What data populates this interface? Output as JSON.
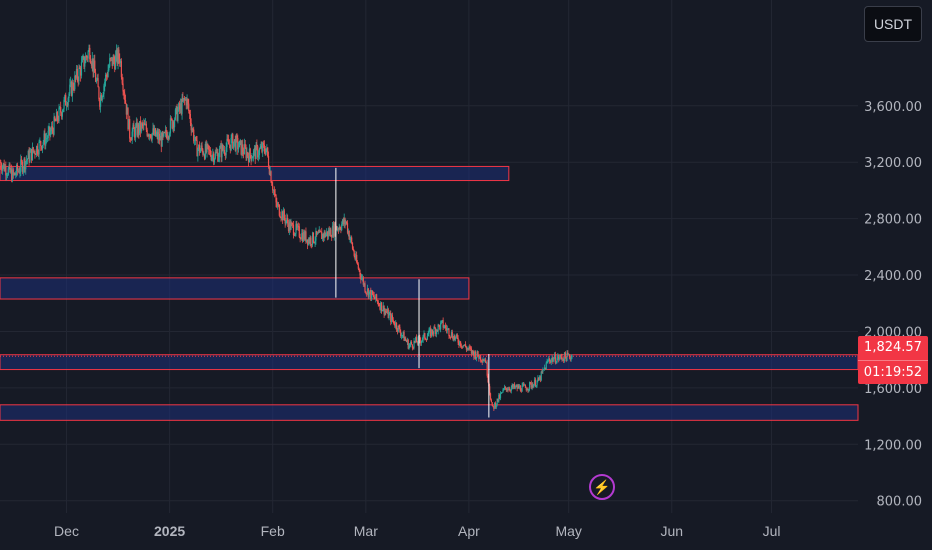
{
  "toolbar": {
    "currency_label": "USDT"
  },
  "last_price": {
    "value": "1,824.57",
    "countdown": "01:19:52"
  },
  "icons": {
    "alert": "lightning-icon"
  },
  "colors": {
    "background": "#161a25",
    "grid": "#232733",
    "up_candle": "#26a69a",
    "down_candle": "#ef5350",
    "zone_fill": "#1e2f78",
    "zone_border": "#f23645",
    "price_tag": "#f23645",
    "axis_text": "#b2b5be"
  },
  "chart_data": {
    "type": "candlestick",
    "symbol_quote": "USDT",
    "x_tick_labels": [
      "Dec",
      "2025",
      "Feb",
      "Mar",
      "Apr",
      "May",
      "Jun",
      "Jul"
    ],
    "y_tick_labels": [
      "3,600.00",
      "3,200.00",
      "2,800.00",
      "2,400.00",
      "2,000.00",
      "1,600.00",
      "1,200.00",
      "800.00"
    ],
    "y_ticks": [
      3600,
      3200,
      2800,
      2400,
      2000,
      1600,
      1200,
      800
    ],
    "ylim": [
      713,
      4350
    ],
    "xlim": [
      "2024-11-11",
      "2025-07-27"
    ],
    "grid": true,
    "last_price": 1824.57,
    "price_path": [
      [
        "2024-11-11",
        3200
      ],
      [
        "2024-11-15",
        3100
      ],
      [
        "2024-11-20",
        3250
      ],
      [
        "2024-11-26",
        3400
      ],
      [
        "2024-12-01",
        3650
      ],
      [
        "2024-12-05",
        3850
      ],
      [
        "2024-12-08",
        4000
      ],
      [
        "2024-12-11",
        3650
      ],
      [
        "2024-12-14",
        3900
      ],
      [
        "2024-12-17",
        3950
      ],
      [
        "2024-12-20",
        3400
      ],
      [
        "2024-12-24",
        3450
      ],
      [
        "2024-12-30",
        3350
      ],
      [
        "2025-01-02",
        3500
      ],
      [
        "2025-01-06",
        3650
      ],
      [
        "2025-01-09",
        3300
      ],
      [
        "2025-01-15",
        3250
      ],
      [
        "2025-01-20",
        3350
      ],
      [
        "2025-01-25",
        3250
      ],
      [
        "2025-01-30",
        3300
      ],
      [
        "2025-02-02",
        2900
      ],
      [
        "2025-02-06",
        2750
      ],
      [
        "2025-02-12",
        2650
      ],
      [
        "2025-02-18",
        2700
      ],
      [
        "2025-02-23",
        2780
      ],
      [
        "2025-02-26",
        2500
      ],
      [
        "2025-03-01",
        2300
      ],
      [
        "2025-03-05",
        2200
      ],
      [
        "2025-03-10",
        2050
      ],
      [
        "2025-03-14",
        1900
      ],
      [
        "2025-03-18",
        1950
      ],
      [
        "2025-03-24",
        2050
      ],
      [
        "2025-03-28",
        1950
      ],
      [
        "2025-04-02",
        1850
      ],
      [
        "2025-04-06",
        1800
      ],
      [
        "2025-04-08",
        1450
      ],
      [
        "2025-04-12",
        1600
      ],
      [
        "2025-04-18",
        1600
      ],
      [
        "2025-04-22",
        1650
      ],
      [
        "2025-04-25",
        1800
      ],
      [
        "2025-04-30",
        1820
      ],
      [
        "2025-05-02",
        1824.57
      ]
    ],
    "zones": [
      {
        "low": 3070,
        "high": 3170,
        "x_start": "2024-11-11",
        "x_end": "2025-04-13"
      },
      {
        "low": 2230,
        "high": 2380,
        "x_start": "2024-11-11",
        "x_end": "2025-04-01"
      },
      {
        "low": 1730,
        "high": 1835,
        "x_start": "2024-11-11",
        "x_end": "2025-07-27"
      },
      {
        "low": 1370,
        "high": 1480,
        "x_start": "2024-11-11",
        "x_end": "2025-07-27"
      }
    ],
    "vertical_lines": [
      {
        "date": "2025-02-20",
        "low": 2240,
        "high": 3160
      },
      {
        "date": "2025-03-17",
        "low": 1740,
        "high": 2370
      },
      {
        "date": "2025-04-07",
        "low": 1390,
        "high": 1840
      }
    ],
    "title": "",
    "xlabel": "",
    "ylabel": ""
  }
}
